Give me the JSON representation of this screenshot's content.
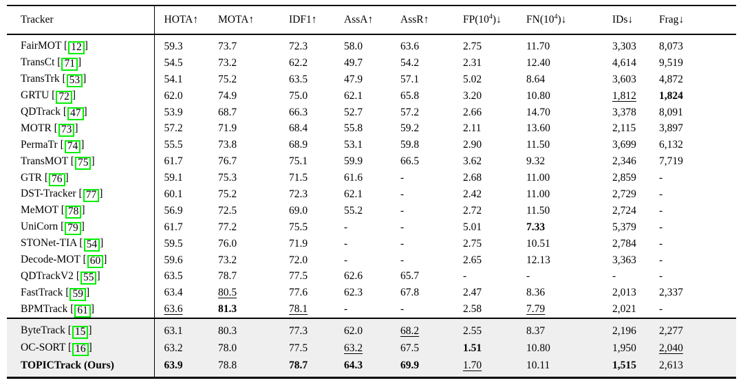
{
  "colors": {
    "citation_box": "#00ee00",
    "highlight_row_bg": "#efefef",
    "rule": "#000000",
    "background": "#ffffff"
  },
  "table": {
    "header": {
      "tracker_label": "Tracker",
      "metric_columns": [
        {
          "id": "hota",
          "pre": "HOTA",
          "sup": "",
          "post": "",
          "arrow": "↑"
        },
        {
          "id": "mota",
          "pre": "MOTA",
          "sup": "",
          "post": "",
          "arrow": "↑"
        },
        {
          "id": "idf1",
          "pre": "IDF1",
          "sup": "",
          "post": "",
          "arrow": "↑"
        },
        {
          "id": "assa",
          "pre": "AssA",
          "sup": "",
          "post": "",
          "arrow": "↑"
        },
        {
          "id": "assr",
          "pre": "AssR",
          "sup": "",
          "post": "",
          "arrow": "↑"
        },
        {
          "id": "fp",
          "pre": "FP(10",
          "sup": "4",
          "post": ")",
          "arrow": "↓"
        },
        {
          "id": "fn",
          "pre": "FN(10",
          "sup": "4",
          "post": ")",
          "arrow": "↓"
        },
        {
          "id": "ids",
          "pre": "IDs",
          "sup": "",
          "post": "",
          "arrow": "↓"
        },
        {
          "id": "frag",
          "pre": "Frag",
          "sup": "",
          "post": "",
          "arrow": "↓"
        }
      ]
    },
    "main_rows": [
      {
        "tracker": "FairMOT",
        "cite": "12",
        "values": [
          "59.3",
          "73.7",
          "72.3",
          "58.0",
          "63.6",
          "2.75",
          "11.70",
          "3,303",
          "8,073"
        ],
        "styles": [
          "",
          "",
          "",
          "",
          "",
          "",
          "",
          "",
          ""
        ]
      },
      {
        "tracker": "TransCt",
        "cite": "71",
        "values": [
          "54.5",
          "73.2",
          "62.2",
          "49.7",
          "54.2",
          "2.31",
          "12.40",
          "4,614",
          "9,519"
        ],
        "styles": [
          "",
          "",
          "",
          "",
          "",
          "",
          "",
          "",
          ""
        ]
      },
      {
        "tracker": "TransTrk",
        "cite": "53",
        "values": [
          "54.1",
          "75.2",
          "63.5",
          "47.9",
          "57.1",
          "5.02",
          "8.64",
          "3,603",
          "4,872"
        ],
        "styles": [
          "",
          "",
          "",
          "",
          "",
          "",
          "",
          "",
          ""
        ]
      },
      {
        "tracker": "GRTU",
        "cite": "72",
        "values": [
          "62.0",
          "74.9",
          "75.0",
          "62.1",
          "65.8",
          "3.20",
          "10.80",
          "1,812",
          "1,824"
        ],
        "styles": [
          "",
          "",
          "",
          "",
          "",
          "",
          "",
          "u",
          "b"
        ]
      },
      {
        "tracker": "QDTrack",
        "cite": "47",
        "values": [
          "53.9",
          "68.7",
          "66.3",
          "52.7",
          "57.2",
          "2.66",
          "14.70",
          "3,378",
          "8,091"
        ],
        "styles": [
          "",
          "",
          "",
          "",
          "",
          "",
          "",
          "",
          ""
        ]
      },
      {
        "tracker": "MOTR",
        "cite": "73",
        "values": [
          "57.2",
          "71.9",
          "68.4",
          "55.8",
          "59.2",
          "2.11",
          "13.60",
          "2,115",
          "3,897"
        ],
        "styles": [
          "",
          "",
          "",
          "",
          "",
          "",
          "",
          "",
          ""
        ]
      },
      {
        "tracker": "PermaTr",
        "cite": "74",
        "values": [
          "55.5",
          "73.8",
          "68.9",
          "53.1",
          "59.8",
          "2.90",
          "11.50",
          "3,699",
          "6,132"
        ],
        "styles": [
          "",
          "",
          "",
          "",
          "",
          "",
          "",
          "",
          ""
        ]
      },
      {
        "tracker": "TransMOT",
        "cite": "75",
        "values": [
          "61.7",
          "76.7",
          "75.1",
          "59.9",
          "66.5",
          "3.62",
          "9.32",
          "2,346",
          "7,719"
        ],
        "styles": [
          "",
          "",
          "",
          "",
          "",
          "",
          "",
          "",
          ""
        ]
      },
      {
        "tracker": "GTR",
        "cite": "76",
        "values": [
          "59.1",
          "75.3",
          "71.5",
          "61.6",
          "-",
          "2.68",
          "11.00",
          "2,859",
          "-"
        ],
        "styles": [
          "",
          "",
          "",
          "",
          "",
          "",
          "",
          "",
          ""
        ]
      },
      {
        "tracker": "DST-Tracker",
        "cite": "77",
        "values": [
          "60.1",
          "75.2",
          "72.3",
          "62.1",
          "-",
          "2.42",
          "11.00",
          "2,729",
          "-"
        ],
        "styles": [
          "",
          "",
          "",
          "",
          "",
          "",
          "",
          "",
          ""
        ]
      },
      {
        "tracker": "MeMOT",
        "cite": "78",
        "values": [
          "56.9",
          "72.5",
          "69.0",
          "55.2",
          "-",
          "2.72",
          "11.50",
          "2,724",
          "-"
        ],
        "styles": [
          "",
          "",
          "",
          "",
          "",
          "",
          "",
          "",
          ""
        ]
      },
      {
        "tracker": "UniCorn",
        "cite": "79",
        "values": [
          "61.7",
          "77.2",
          "75.5",
          "-",
          "-",
          "5.01",
          "7.33",
          "5,379",
          "-"
        ],
        "styles": [
          "",
          "",
          "",
          "",
          "",
          "",
          "b",
          "",
          ""
        ]
      },
      {
        "tracker": "STONet-TIA",
        "cite": "54",
        "values": [
          "59.5",
          "76.0",
          "71.9",
          "-",
          "-",
          "2.75",
          "10.51",
          "2,784",
          "-"
        ],
        "styles": [
          "",
          "",
          "",
          "",
          "",
          "",
          "",
          "",
          ""
        ]
      },
      {
        "tracker": "Decode-MOT",
        "cite": "60",
        "values": [
          "59.6",
          "73.2",
          "72.0",
          "-",
          "-",
          "2.65",
          "12.13",
          "3,363",
          "-"
        ],
        "styles": [
          "",
          "",
          "",
          "",
          "",
          "",
          "",
          "",
          ""
        ]
      },
      {
        "tracker": "QDTrackV2",
        "cite": "55",
        "values": [
          "63.5",
          "78.7",
          "77.5",
          "62.6",
          "65.7",
          "-",
          "-",
          "-",
          "-"
        ],
        "styles": [
          "",
          "",
          "",
          "",
          "",
          "",
          "",
          "",
          ""
        ]
      },
      {
        "tracker": "FastTrack",
        "cite": "59",
        "values": [
          "63.4",
          "80.5",
          "77.6",
          "62.3",
          "67.8",
          "2.47",
          "8.36",
          "2,013",
          "2,337"
        ],
        "styles": [
          "",
          "u",
          "",
          "",
          "",
          "",
          "",
          "",
          ""
        ]
      },
      {
        "tracker": "BPMTrack",
        "cite": "61",
        "values": [
          "63.6",
          "81.3",
          "78.1",
          "-",
          "-",
          "2.58",
          "7.79",
          "2,021",
          "-"
        ],
        "styles": [
          "u",
          "b",
          "u",
          "",
          "",
          "",
          "u",
          "",
          ""
        ]
      }
    ],
    "ours_rows": [
      {
        "tracker": "ByteTrack",
        "cite": "15",
        "values": [
          "63.1",
          "80.3",
          "77.3",
          "62.0",
          "68.2",
          "2.55",
          "8.37",
          "2,196",
          "2,277"
        ],
        "styles": [
          "",
          "",
          "",
          "",
          "u",
          "",
          "",
          "",
          ""
        ]
      },
      {
        "tracker": "OC-SORT",
        "cite": "16",
        "values": [
          "63.2",
          "78.0",
          "77.5",
          "63.2",
          "67.5",
          "1.51",
          "10.80",
          "1,950",
          "2,040"
        ],
        "styles": [
          "",
          "",
          "",
          "u",
          "",
          "b",
          "",
          "",
          "u"
        ]
      },
      {
        "tracker": "TOPICTrack (Ours)",
        "cite": "",
        "bold_name": true,
        "values": [
          "63.9",
          "78.8",
          "78.7",
          "64.3",
          "69.9",
          "1.70",
          "10.11",
          "1,515",
          "2,613"
        ],
        "styles": [
          "b",
          "",
          "b",
          "b",
          "b",
          "u",
          "",
          "b",
          ""
        ]
      }
    ]
  }
}
